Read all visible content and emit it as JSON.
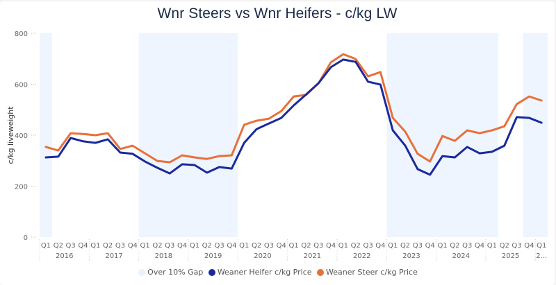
{
  "chart_data": {
    "type": "line",
    "title": "Wnr Steers vs Wnr Heifers - c/kg LW",
    "xlabel": "",
    "ylabel": "c/kg liveweight",
    "ylim": [
      0,
      800
    ],
    "yticks": [
      0,
      200,
      400,
      600,
      800
    ],
    "grid": false,
    "legend_position": "bottom",
    "years": [
      {
        "label": "2016",
        "start": 0,
        "count": 4
      },
      {
        "label": "2017",
        "start": 4,
        "count": 4
      },
      {
        "label": "2018",
        "start": 8,
        "count": 4
      },
      {
        "label": "2019",
        "start": 12,
        "count": 4
      },
      {
        "label": "2020",
        "start": 16,
        "count": 4
      },
      {
        "label": "2021",
        "start": 20,
        "count": 4
      },
      {
        "label": "2022",
        "start": 24,
        "count": 4
      },
      {
        "label": "2023",
        "start": 28,
        "count": 4
      },
      {
        "label": "2024",
        "start": 32,
        "count": 4
      },
      {
        "label": "2025",
        "start": 36,
        "count": 4
      },
      {
        "label": "2...",
        "start": 40,
        "count": 1
      }
    ],
    "x": [
      "Q1",
      "Q2",
      "Q3",
      "Q4",
      "Q1",
      "Q2",
      "Q3",
      "Q4",
      "Q1",
      "Q2",
      "Q3",
      "Q4",
      "Q1",
      "Q2",
      "Q3",
      "Q4",
      "Q1",
      "Q2",
      "Q3",
      "Q4",
      "Q1",
      "Q2",
      "Q3",
      "Q4",
      "Q1",
      "Q2",
      "Q3",
      "Q4",
      "Q1",
      "Q2",
      "Q3",
      "Q4",
      "Q1",
      "Q2",
      "Q3",
      "Q4",
      "Q1",
      "Q2",
      "Q3",
      "Q4",
      "Q1"
    ],
    "series": [
      {
        "name": "Weaner Heifer c/kg Price",
        "color": "#1a2a9c",
        "values": [
          313,
          316,
          389,
          376,
          370,
          384,
          332,
          327,
          297,
          272,
          250,
          286,
          283,
          253,
          275,
          269,
          370,
          424,
          446,
          468,
          517,
          560,
          604,
          667,
          697,
          688,
          610,
          599,
          419,
          359,
          267,
          245,
          318,
          313,
          354,
          329,
          335,
          359,
          471,
          468,
          449
        ]
      },
      {
        "name": "Weaner Steer c/kg Price",
        "color": "#e8703a",
        "values": [
          354,
          340,
          408,
          405,
          400,
          408,
          346,
          359,
          329,
          299,
          294,
          321,
          313,
          307,
          318,
          321,
          441,
          457,
          465,
          495,
          552,
          558,
          604,
          686,
          718,
          699,
          631,
          648,
          468,
          414,
          327,
          297,
          397,
          378,
          419,
          408,
          419,
          435,
          522,
          552,
          536
        ]
      }
    ],
    "bands": {
      "name": "Over 10% Gap",
      "color": "#eef5fe",
      "ranges": [
        [
          0,
          0
        ],
        [
          8,
          11
        ],
        [
          12,
          15
        ],
        [
          28,
          36
        ],
        [
          39,
          40
        ]
      ]
    }
  },
  "legend": [
    {
      "label": "Over 10% Gap",
      "color": "#eaf2fc"
    },
    {
      "label": "Weaner Heifer c/kg Price",
      "color": "#1a2a9c"
    },
    {
      "label": "Weaner Steer c/kg Price",
      "color": "#e8703a"
    }
  ]
}
